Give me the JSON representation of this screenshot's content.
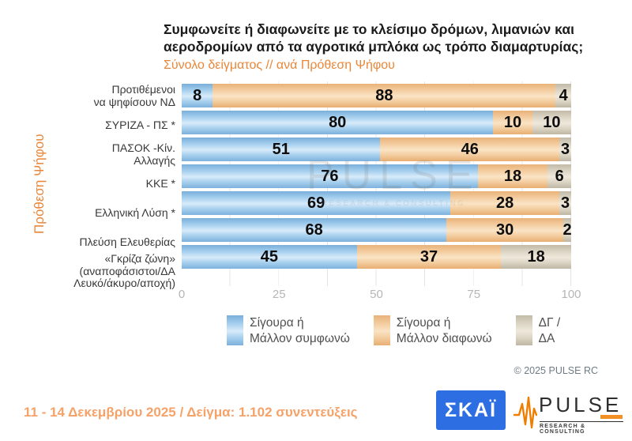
{
  "header": {
    "title_lines": [
      "Συμφωνείτε ή διαφωνείτε με το κλείσιμο δρόμων, λιμανιών και",
      "αεροδρομίων από τα αγροτικά μπλόκα ως τρόπο διαμαρτυρίας;"
    ],
    "subtitle": "Σύνολο δείγματος // ανά Πρόθεση Ψήφου"
  },
  "watermark": {
    "text": "PULSE",
    "subtext": "RESEARCH & CONSULTING"
  },
  "copyright": "© 2025  PULSE RC",
  "footer": {
    "text": "11 - 14 Δεκεμβρίου 2025  /  Δείγμα:  1.102 συνεντεύξεις",
    "skai_logo_text": "ΣΚΑΪ",
    "pulse_logo_text": "PULSE",
    "pulse_logo_tagline": "RESEARCH & CONSULTING"
  },
  "colors": {
    "agree_blue": "#92c5ec",
    "disagree_orange": "#f2c392",
    "dk_gray": "#d2c9b8",
    "accent_orange": "#e8873a",
    "footer_orange": "#f5a269",
    "skai_blue": "#2d6ee3",
    "pulse_orange": "#f07d00"
  },
  "chart_data": {
    "type": "bar",
    "orientation": "horizontal-stacked",
    "title": "Συμφωνείτε ή διαφωνείτε με το κλείσιμο δρόμων, λιμανιών και αεροδρομίων από τα αγροτικά μπλόκα ως τρόπο διαμαρτυρίας;",
    "subtitle": "Σύνολο δείγματος // ανά Πρόθεση Ψήφου",
    "y_axis_label": "Πρόθεση Ψήφου",
    "categories": [
      [
        "Προτιθέμενοι",
        "να ψηφίσουν ΝΔ"
      ],
      [
        "ΣΥΡΙΖΑ - ΠΣ *"
      ],
      [
        "ΠΑΣΟΚ -Κίν.",
        "Αλλαγής"
      ],
      [
        "ΚΚΕ *"
      ],
      [
        "Ελληνική Λύση *"
      ],
      [
        "Πλεύση Ελευθερίας"
      ],
      [
        "«Γκρίζα ζώνη»",
        "(αναποφάσιστοι/ΔΑ",
        "Λευκό/άκυρο/αποχή)"
      ]
    ],
    "series": [
      {
        "key": "agree",
        "name": "Σίγουρα ή Μάλλον συμφωνώ",
        "values": [
          8,
          80,
          51,
          76,
          69,
          68,
          45
        ]
      },
      {
        "key": "disagree",
        "name": "Σίγουρα ή Μάλλον διαφωνώ",
        "values": [
          88,
          10,
          46,
          18,
          28,
          30,
          37
        ]
      },
      {
        "key": "dk",
        "name": "ΔΓ / ΔΑ",
        "values": [
          4,
          10,
          3,
          6,
          3,
          2,
          18
        ]
      }
    ],
    "xlim": [
      0,
      100
    ],
    "x_ticks": [
      0,
      25,
      50,
      75,
      100
    ],
    "grid": true,
    "legend_position": "bottom",
    "legend": [
      {
        "lines": [
          "Σίγουρα ή",
          "Μάλλον συμφωνώ"
        ]
      },
      {
        "lines": [
          "Σίγουρα ή",
          "Μάλλον διαφωνώ"
        ]
      },
      {
        "lines": [
          "ΔΓ /",
          "ΔΑ"
        ]
      }
    ]
  }
}
